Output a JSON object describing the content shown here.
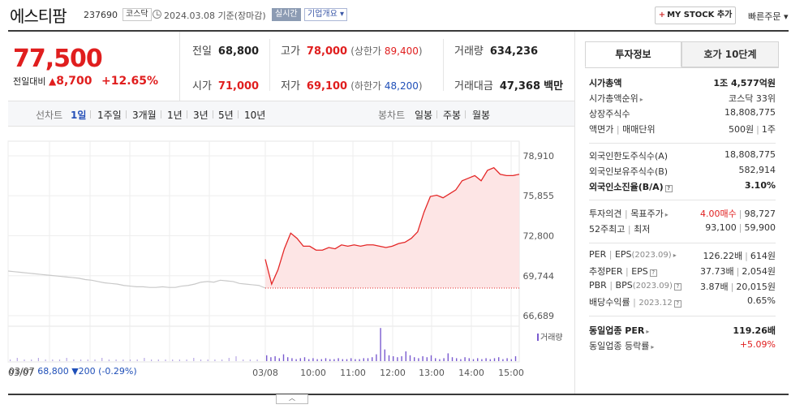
{
  "header": {
    "name": "에스티팜",
    "code": "237690",
    "market": "코스닥",
    "date": "2024.03.08  기준(장마감)",
    "realtime": "실시간",
    "corp_info": "기업개요 ▾",
    "mystock_plus": "+",
    "mystock": "MY STOCK 추가",
    "quick_order": "빠른주문 ▾"
  },
  "price": {
    "current": "77,500",
    "diff_label": "전일대비",
    "diff_arrow": "▲",
    "diff_value": "8,700",
    "diff_pct": "+12.65%"
  },
  "stats": {
    "prev_label": "전일",
    "prev": "68,800",
    "open_label": "시가",
    "open": "71,000",
    "high_label": "고가",
    "high": "78,000",
    "upper_label": "(상한가",
    "upper": "89,400",
    "upper_close": ")",
    "low_label": "저가",
    "low": "69,100",
    "lower_label": "(하한가",
    "lower": "48,200",
    "lower_close": ")",
    "volume_label": "거래량",
    "volume": "634,236",
    "amount_label": "거래대금",
    "amount": "47,368",
    "amount_unit": "백만"
  },
  "toolbar": {
    "line_label": "선차트",
    "periods": [
      "1일",
      "1주일",
      "3개월",
      "1년",
      "3년",
      "5년",
      "10년"
    ],
    "candle_label": "봉차트",
    "candles": [
      "일봉",
      "주봉",
      "월봉"
    ]
  },
  "chart_data": {
    "type": "line",
    "y_ticks": [
      "78,910",
      "75,855",
      "72,800",
      "69,744",
      "66,689"
    ],
    "ylim": [
      66689,
      78910
    ],
    "x_ticks": [
      "03/07",
      "03/08",
      "10:00",
      "11:00",
      "12:00",
      "13:00",
      "14:00",
      "15:00"
    ],
    "prev_close": 68800,
    "series": [
      {
        "name": "",
        "values": [
          70100,
          70050,
          70000,
          69950,
          69900,
          69850,
          69800,
          69750,
          69700,
          69650,
          69600,
          69550,
          69450,
          69400,
          69300,
          69200,
          69150,
          69100,
          69000,
          68950,
          68900,
          68900,
          68850,
          68850,
          68900,
          68850,
          68850,
          68950,
          69000,
          69100,
          69250,
          69300,
          69250,
          69400,
          69350,
          69300,
          69150,
          69100,
          69050,
          69000,
          68800
        ]
      },
      {
        "name": "",
        "values": [
          71000,
          69100,
          70200,
          71800,
          73000,
          72600,
          72000,
          72000,
          71700,
          71700,
          71900,
          71800,
          72100,
          72000,
          72100,
          72000,
          72100,
          72100,
          72000,
          71900,
          72000,
          72200,
          72300,
          72600,
          73100,
          74600,
          75800,
          75900,
          75700,
          76000,
          76300,
          77000,
          77200,
          77400,
          77000,
          77800,
          78000,
          77500,
          77400,
          77400,
          77500
        ]
      }
    ],
    "volume_legend": "거래량",
    "prev_day_summary": {
      "date": "03/07",
      "close": "68,800",
      "arrow": "▼",
      "diff": "200",
      "pct": "(-0.29%)"
    }
  },
  "right_panel": {
    "tabs": [
      "투자정보",
      "호가 10단계"
    ],
    "market_cap_label": "시가총액",
    "market_cap": "1조 4,577억원",
    "rank_label": "시가총액순위",
    "rank": "코스닥 33위",
    "shares_label": "상장주식수",
    "shares": "18,808,775",
    "par_label": "액면가",
    "par_sep": "|",
    "unit_label": "매매단위",
    "par": "500원",
    "unit": "1주",
    "foreign_limit_label": "외국인한도주식수(A)",
    "foreign_limit": "18,808,775",
    "foreign_hold_label": "외국인보유주식수(B)",
    "foreign_hold": "582,914",
    "foreign_ratio_label": "외국인소진율(B/A)",
    "foreign_ratio": "3.10%",
    "opinion_label": "투자의견",
    "target_label": "목표주가",
    "opinion": "4.00매수",
    "target": "98,727",
    "w52_label": "52주최고",
    "w52_low_label": "최저",
    "w52_high": "93,100",
    "w52_low": "59,900",
    "per_label": "PER",
    "eps_label": "EPS",
    "eps_date": "(2023.09)",
    "per": "126.22배",
    "eps": "614원",
    "fper_label": "추정PER",
    "feps_label": "EPS",
    "fper": "37.73배",
    "feps": "2,054원",
    "pbr_label": "PBR",
    "bps_label": "BPS",
    "bps_date": "(2023.09)",
    "pbr": "3.87배",
    "bps": "20,015원",
    "div_label": "배당수익률",
    "div_date": "2023.12",
    "div": "0.65%",
    "sector_per_label": "동일업종 PER",
    "sector_per": "119.26배",
    "sector_chg_label": "동일업종 등락률",
    "sector_chg": "+5.09%"
  }
}
